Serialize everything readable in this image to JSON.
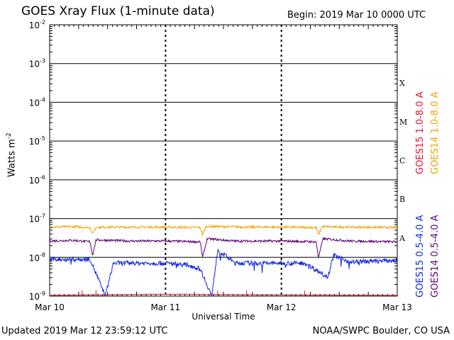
{
  "header": {
    "title": "GOES Xray Flux (1-minute data)",
    "begin": "Begin:  2019 Mar 10 0000 UTC"
  },
  "footer": {
    "updated": "Updated 2019 Mar 12 23:59:12 UTC",
    "credit": "NOAA/SWPC Boulder, CO USA"
  },
  "chart_data": {
    "type": "line",
    "xlabel": "Universal Time",
    "ylabel_base": "Watts m",
    "ylabel_exp": "-2",
    "x_ticks": [
      "Mar 10",
      "Mar 11",
      "Mar 12",
      "Mar 13"
    ],
    "xlim_days": [
      0,
      3
    ],
    "ylim_log10": [
      -9,
      -2
    ],
    "y_scale": "log",
    "y_ticks": [
      {
        "base": "10",
        "exp": "-2"
      },
      {
        "base": "10",
        "exp": "-3"
      },
      {
        "base": "10",
        "exp": "-4"
      },
      {
        "base": "10",
        "exp": "-5"
      },
      {
        "base": "10",
        "exp": "-6"
      },
      {
        "base": "10",
        "exp": "-7"
      },
      {
        "base": "10",
        "exp": "-8"
      },
      {
        "base": "10",
        "exp": "-9"
      }
    ],
    "flare_classes": [
      "X",
      "M",
      "C",
      "B",
      "A"
    ],
    "flare_class_levels_log10": [
      -3.5,
      -4.5,
      -5.5,
      -6.5,
      -7.5
    ],
    "grid": true,
    "series": [
      {
        "name": "GOES15 1.0-8.0 A",
        "color": "#e8132d",
        "values_log10": [
          [
            0.0,
            -8.98
          ],
          [
            1.0,
            -8.95
          ],
          [
            2.0,
            -8.97
          ],
          [
            3.0,
            -8.98
          ]
        ]
      },
      {
        "name": "GOES14 1.0-8.0 A",
        "color": "#f0a500",
        "values_log10": [
          [
            0.0,
            -7.22
          ],
          [
            0.2,
            -7.21
          ],
          [
            0.35,
            -7.23
          ],
          [
            0.37,
            -7.4
          ],
          [
            0.4,
            -7.22
          ],
          [
            0.6,
            -7.22
          ],
          [
            1.0,
            -7.22
          ],
          [
            1.3,
            -7.23
          ],
          [
            1.32,
            -7.42
          ],
          [
            1.35,
            -7.2
          ],
          [
            1.7,
            -7.22
          ],
          [
            2.0,
            -7.22
          ],
          [
            2.3,
            -7.23
          ],
          [
            2.32,
            -7.42
          ],
          [
            2.35,
            -7.21
          ],
          [
            2.6,
            -7.22
          ],
          [
            3.0,
            -7.23
          ]
        ]
      },
      {
        "name": "GOES14 0.5-4.0 A",
        "color": "#5e007a",
        "values_log10": [
          [
            0.0,
            -7.58
          ],
          [
            0.2,
            -7.56
          ],
          [
            0.35,
            -7.6
          ],
          [
            0.37,
            -7.95
          ],
          [
            0.4,
            -7.55
          ],
          [
            0.7,
            -7.58
          ],
          [
            1.0,
            -7.58
          ],
          [
            1.3,
            -7.6
          ],
          [
            1.32,
            -8.0
          ],
          [
            1.36,
            -7.52
          ],
          [
            1.6,
            -7.58
          ],
          [
            2.0,
            -7.58
          ],
          [
            2.3,
            -7.6
          ],
          [
            2.32,
            -8.0
          ],
          [
            2.36,
            -7.52
          ],
          [
            2.6,
            -7.58
          ],
          [
            3.0,
            -7.6
          ]
        ]
      },
      {
        "name": "GOES15 0.5-4.0 A",
        "color": "#0f26e6",
        "values_log10": [
          [
            0.0,
            -8.05
          ],
          [
            0.35,
            -8.05
          ],
          [
            0.48,
            -9.0
          ],
          [
            0.55,
            -8.15
          ],
          [
            0.8,
            -8.15
          ],
          [
            1.0,
            -8.15
          ],
          [
            1.2,
            -8.2
          ],
          [
            1.3,
            -8.3
          ],
          [
            1.4,
            -9.0
          ],
          [
            1.45,
            -7.8
          ],
          [
            1.6,
            -8.15
          ],
          [
            2.0,
            -8.15
          ],
          [
            2.2,
            -8.15
          ],
          [
            2.4,
            -8.5
          ],
          [
            2.45,
            -7.95
          ],
          [
            2.6,
            -8.12
          ],
          [
            3.0,
            -8.08
          ]
        ]
      }
    ]
  }
}
